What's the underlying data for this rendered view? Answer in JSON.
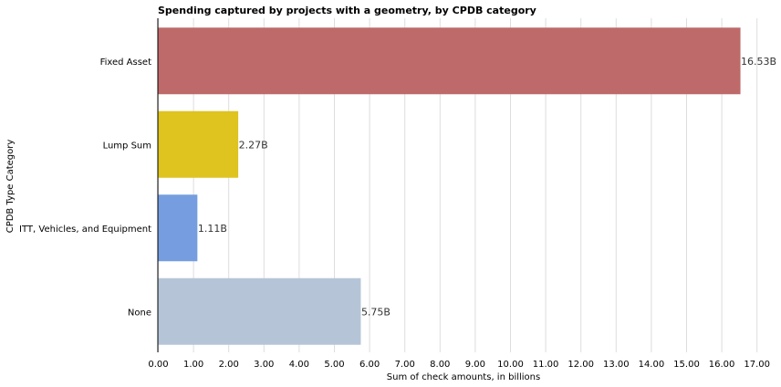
{
  "chart_data": {
    "type": "bar",
    "orientation": "horizontal",
    "title": "Spending captured by projects with a geometry, by CPDB category",
    "xlabel": "Sum of check amounts, in billions",
    "ylabel": "CPDB Type Category",
    "categories": [
      "Fixed Asset",
      "Lump Sum",
      "ITT, Vehicles, and Equipment",
      "None"
    ],
    "values": [
      16.53,
      2.27,
      1.11,
      5.75
    ],
    "data_labels": [
      "16.53B",
      "2.27B",
      "1.11B",
      "5.75B"
    ],
    "colors": [
      "#bf6a6a",
      "#dfc31f",
      "#759ddf",
      "#b5c5d7"
    ],
    "xlim": [
      0,
      17.3
    ],
    "xticks": [
      0,
      1,
      2,
      3,
      4,
      5,
      6,
      7,
      8,
      9,
      10,
      11,
      12,
      13,
      14,
      15,
      16,
      17
    ],
    "xtick_labels": [
      "0.00",
      "1.00",
      "2.00",
      "3.00",
      "4.00",
      "5.00",
      "6.00",
      "7.00",
      "8.00",
      "9.00",
      "10.00",
      "11.00",
      "12.00",
      "13.00",
      "14.00",
      "15.00",
      "16.00",
      "17.00"
    ],
    "grid": "vertical",
    "legend": "none"
  }
}
